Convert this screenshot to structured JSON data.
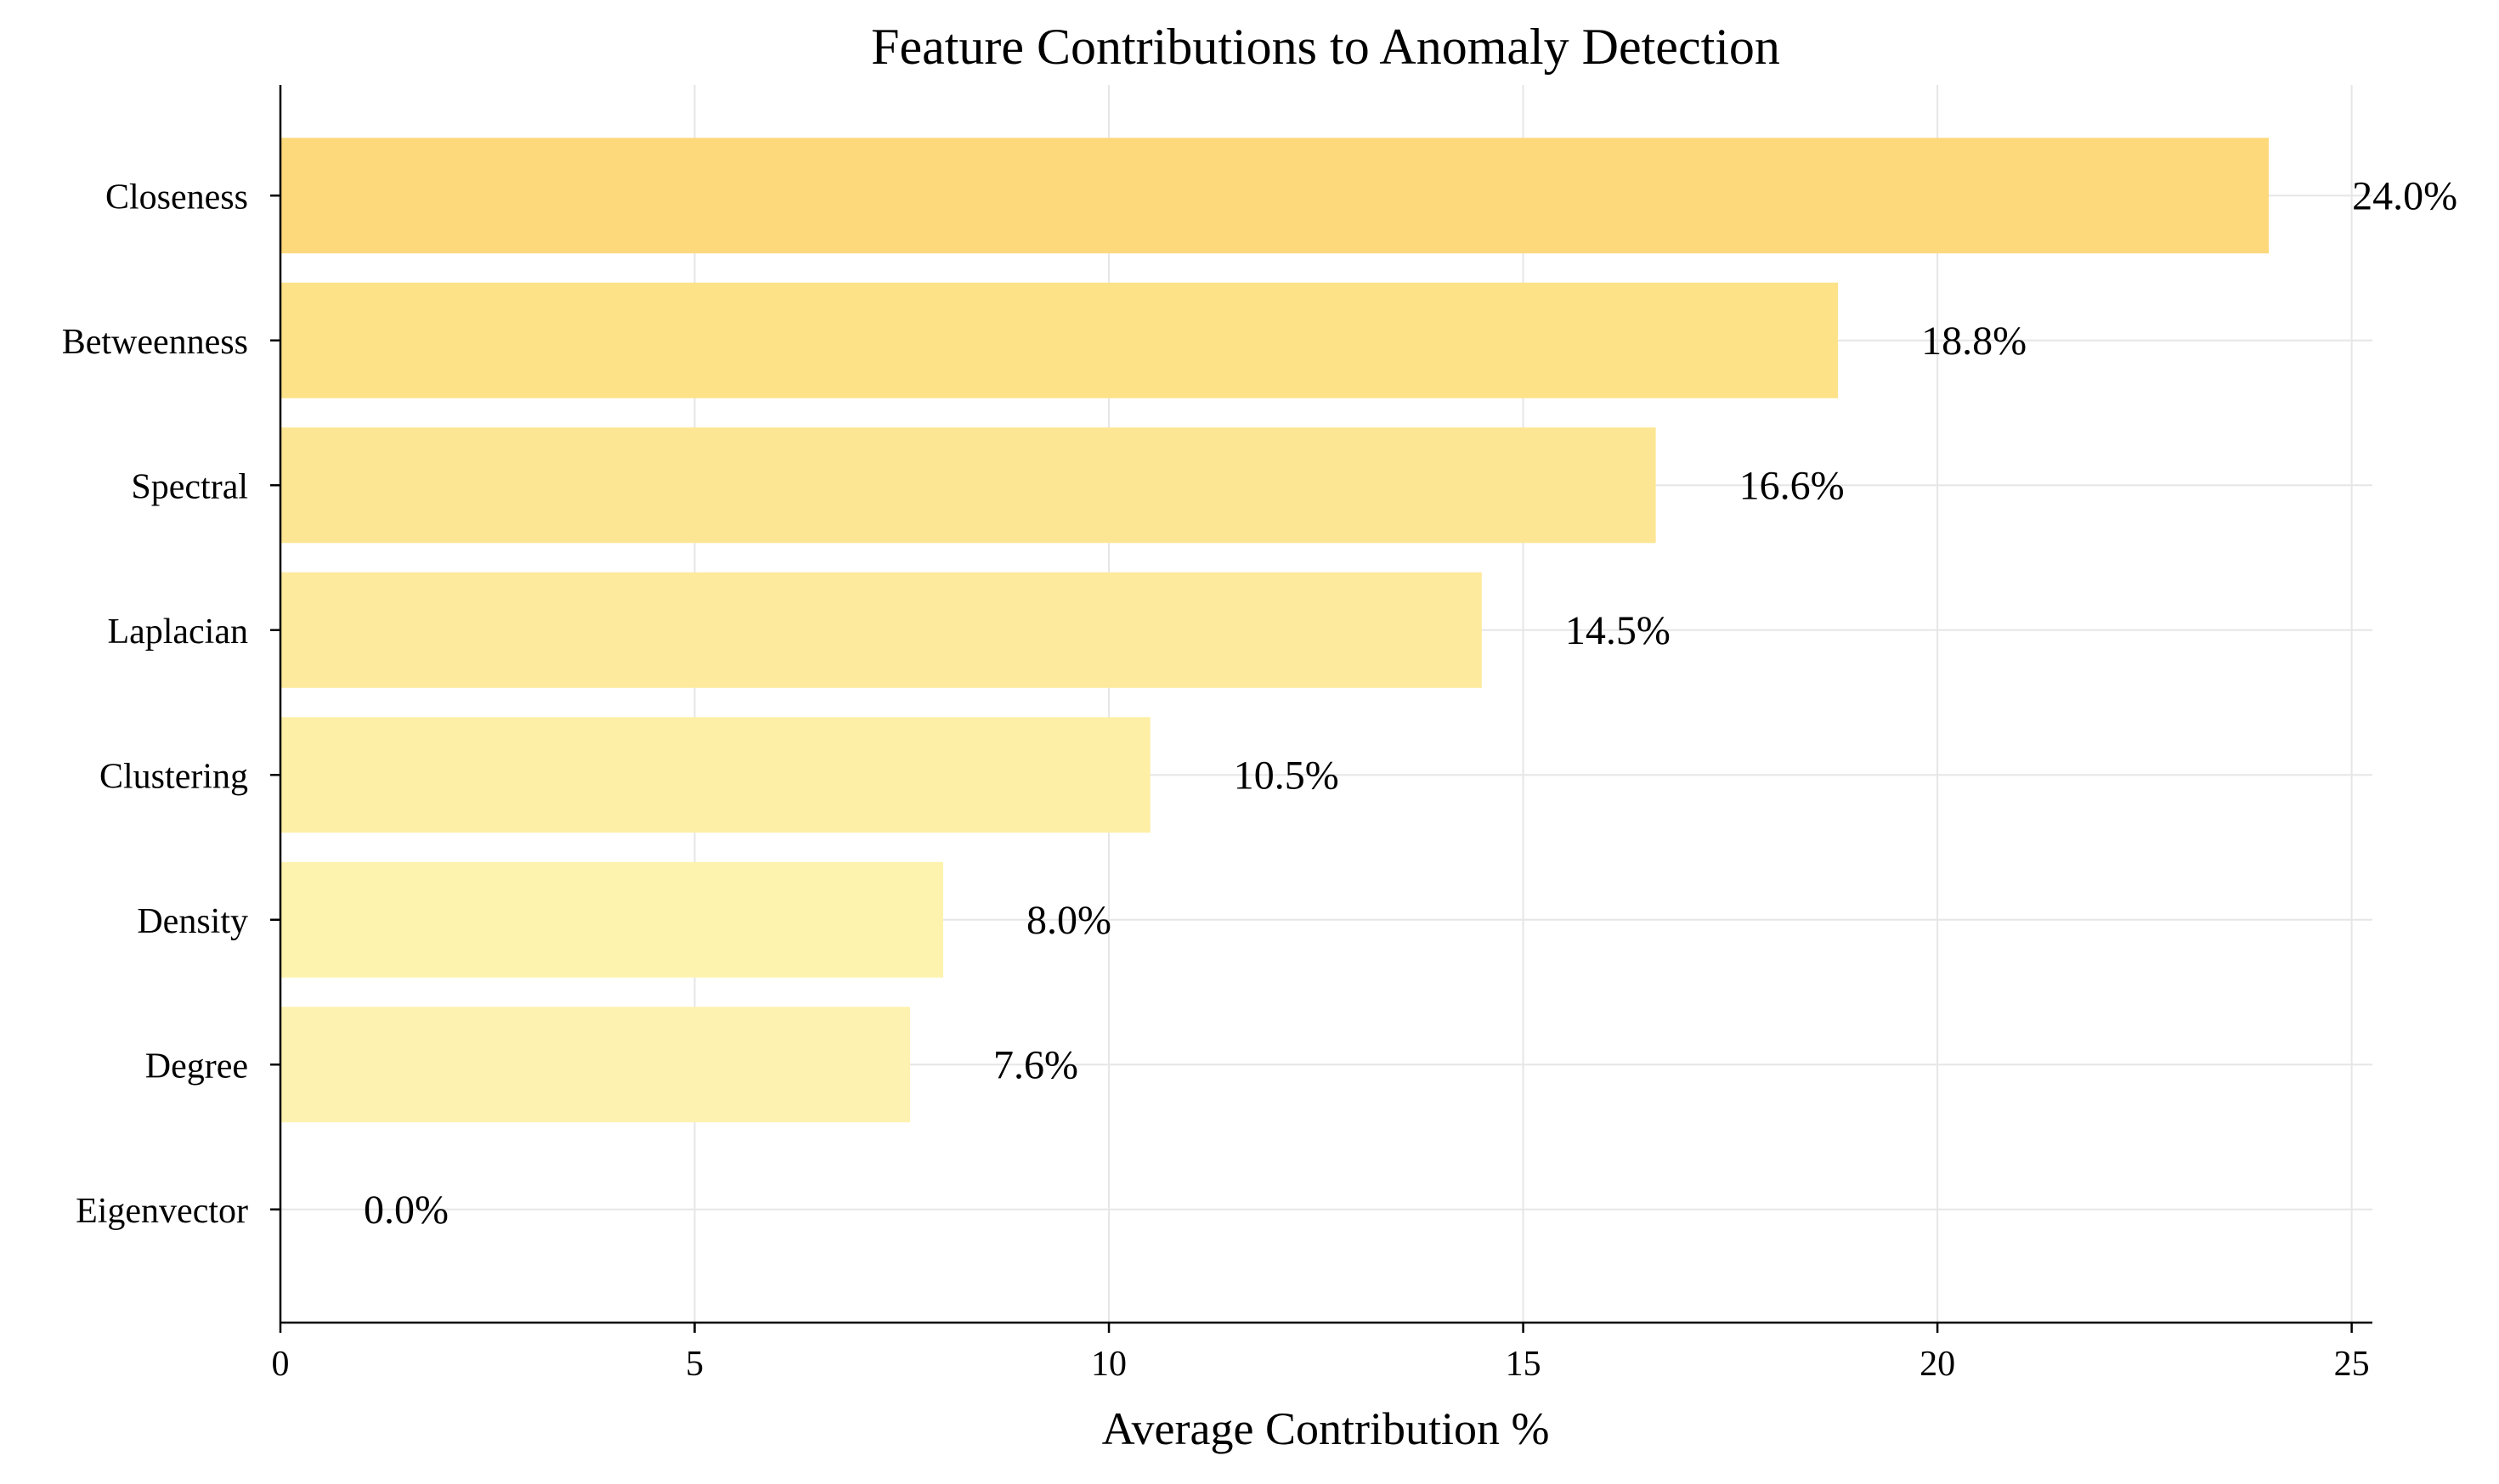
{
  "chart_data": {
    "type": "bar",
    "orientation": "horizontal",
    "title": "Feature Contributions to Anomaly Detection",
    "xlabel": "Average Contribution %",
    "ylabel": "",
    "xlim": [
      0,
      25.25
    ],
    "xticks": [
      0,
      5,
      10,
      15,
      20,
      25
    ],
    "grid": true,
    "categories": [
      "Closeness",
      "Betweenness",
      "Spectral",
      "Laplacian",
      "Clustering",
      "Density",
      "Degree",
      "Eigenvector"
    ],
    "values": [
      24.0,
      18.8,
      16.6,
      14.5,
      10.5,
      8.0,
      7.6,
      0.0
    ],
    "value_labels": [
      "24.0%",
      "18.8%",
      "16.6%",
      "14.5%",
      "10.5%",
      "8.0%",
      "7.6%",
      "0.0%"
    ],
    "colors": {
      "bar_gradient": [
        "#fdd97c",
        "#fde287",
        "#fde693",
        "#fdea9c",
        "#fdefa6",
        "#fef3ae",
        "#fef2b0",
        "#fef6b8"
      ],
      "grid": "#e6e6e6",
      "axis": "#000000"
    }
  }
}
